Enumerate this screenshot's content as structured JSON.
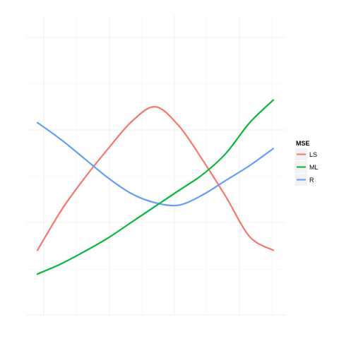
{
  "chart_data": {
    "type": "line",
    "title": "",
    "xlabel": "",
    "ylabel": "",
    "xlim": [
      0,
      1
    ],
    "ylim": [
      0,
      1
    ],
    "grid": true,
    "axis_labels_visible": false,
    "legend": {
      "title": "MSE",
      "position": "right"
    },
    "x": [
      0.0,
      0.1,
      0.2,
      0.3,
      0.4,
      0.5,
      0.6,
      0.7,
      0.8,
      0.9,
      1.0
    ],
    "series": [
      {
        "name": "LS",
        "color": "#F8766D",
        "values": [
          0.205,
          0.38,
          0.525,
          0.655,
          0.775,
          0.84,
          0.755,
          0.605,
          0.44,
          0.265,
          0.205
        ]
      },
      {
        "name": "ML",
        "color": "#00BA38",
        "values": [
          0.1,
          0.145,
          0.2,
          0.26,
          0.33,
          0.4,
          0.47,
          0.54,
          0.635,
          0.77,
          0.87
        ]
      },
      {
        "name": "R",
        "color": "#619CFF",
        "values": [
          0.77,
          0.695,
          0.61,
          0.525,
          0.455,
          0.415,
          0.405,
          0.45,
          0.515,
          0.58,
          0.655
        ]
      }
    ]
  }
}
